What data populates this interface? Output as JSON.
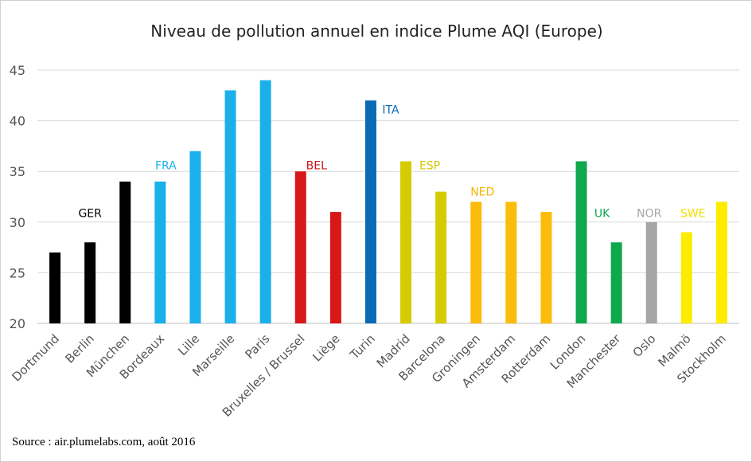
{
  "chart_data": {
    "type": "bar",
    "title": "Niveau de pollution annuel en indice Plume AQI (Europe)",
    "xlabel": "",
    "ylabel": "",
    "ylim": [
      20,
      45
    ],
    "yticks": [
      20,
      25,
      30,
      35,
      40,
      45
    ],
    "grid": true,
    "categories": [
      "Dortmund",
      "Berlin",
      "München",
      "Bordeaux",
      "Lille",
      "Marseille",
      "Paris",
      "Bruxelles / Brussel",
      "Liège",
      "Turin",
      "Madrid",
      "Barcelona",
      "Groningen",
      "Amsterdam",
      "Rotterdam",
      "London",
      "Manchester",
      "Oslo",
      "Malmö",
      "Stockholm"
    ],
    "values": [
      27,
      28,
      34,
      34,
      37,
      43,
      44,
      35,
      31,
      42,
      36,
      33,
      32,
      32,
      31,
      36,
      28,
      30,
      29,
      32
    ],
    "groups": [
      "GER",
      "GER",
      "GER",
      "FRA",
      "FRA",
      "FRA",
      "FRA",
      "BEL",
      "BEL",
      "ITA",
      "ESP",
      "ESP",
      "NED",
      "NED",
      "NED",
      "UK",
      "UK",
      "NOR",
      "SWE",
      "SWE"
    ],
    "group_colors": {
      "GER": "#000000",
      "FRA": "#1ab0ea",
      "BEL": "#d81818",
      "ITA": "#0a6ab4",
      "ESP": "#d4cc00",
      "NED": "#fcbc0c",
      "UK": "#10a84c",
      "NOR": "#a6a6a6",
      "SWE": "#fcec00"
    },
    "group_label_colors": {
      "GER": "#000000",
      "FRA": "#1ab0ea",
      "BEL": "#c81818",
      "ITA": "#0a6ab4",
      "ESP": "#d4c400",
      "NED": "#f4b400",
      "UK": "#10a84c",
      "NOR": "#a6a6a6",
      "SWE": "#f4e000"
    },
    "annotations": [
      {
        "text": "GER",
        "category": "Berlin",
        "y": 30.5
      },
      {
        "text": "FRA",
        "category": "Bordeaux",
        "y": 35.2
      },
      {
        "text": "BEL",
        "category": "Bruxelles / Brussel",
        "y": 35.2
      },
      {
        "text": "ITA",
        "category": "Turin",
        "y": 40.7
      },
      {
        "text": "ESP",
        "category": "Madrid",
        "y": 35.2
      },
      {
        "text": "NED",
        "category": "Groningen",
        "y": 32.6
      },
      {
        "text": "UK",
        "category": "Manchester",
        "y": 30.5
      },
      {
        "text": "NOR",
        "category": "Oslo",
        "y": 30.5
      },
      {
        "text": "SWE",
        "category": "Malmö",
        "y": 30.5
      }
    ]
  },
  "source": "Source : air.plumelabs.com, août 2016"
}
